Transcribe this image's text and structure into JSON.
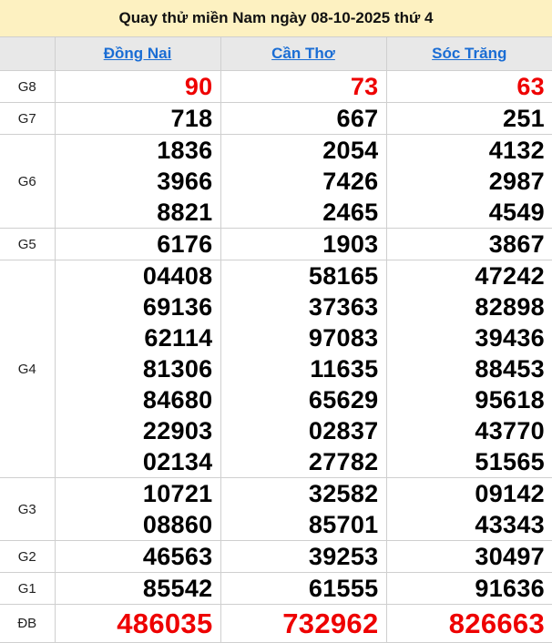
{
  "title": "Quay thử miền Nam ngày 08-10-2025 thứ 4",
  "provinces": [
    "Đồng Nai",
    "Cần Thơ",
    "Sóc Trăng"
  ],
  "colors": {
    "special": "#e00000",
    "link": "#1a6dd4",
    "title_bg": "#fdf1c1"
  },
  "prizes": [
    {
      "label": "G8",
      "values": [
        [
          "90"
        ],
        [
          "73"
        ],
        [
          "63"
        ]
      ],
      "red": true
    },
    {
      "label": "G7",
      "values": [
        [
          "718"
        ],
        [
          "667"
        ],
        [
          "251"
        ]
      ]
    },
    {
      "label": "G6",
      "values": [
        [
          "1836",
          "3966",
          "8821"
        ],
        [
          "2054",
          "7426",
          "2465"
        ],
        [
          "4132",
          "2987",
          "4549"
        ]
      ]
    },
    {
      "label": "G5",
      "values": [
        [
          "6176"
        ],
        [
          "1903"
        ],
        [
          "3867"
        ]
      ]
    },
    {
      "label": "G4",
      "values": [
        [
          "04408",
          "69136",
          "62114",
          "81306",
          "84680",
          "22903",
          "02134"
        ],
        [
          "58165",
          "37363",
          "97083",
          "11635",
          "65629",
          "02837",
          "27782"
        ],
        [
          "47242",
          "82898",
          "39436",
          "88453",
          "95618",
          "43770",
          "51565"
        ]
      ]
    },
    {
      "label": "G3",
      "values": [
        [
          "10721",
          "08860"
        ],
        [
          "32582",
          "85701"
        ],
        [
          "09142",
          "43343"
        ]
      ]
    },
    {
      "label": "G2",
      "values": [
        [
          "46563"
        ],
        [
          "39253"
        ],
        [
          "30497"
        ]
      ]
    },
    {
      "label": "G1",
      "values": [
        [
          "85542"
        ],
        [
          "61555"
        ],
        [
          "91636"
        ]
      ]
    },
    {
      "label": "ĐB",
      "values": [
        [
          "486035"
        ],
        [
          "732962"
        ],
        [
          "826663"
        ]
      ],
      "red": true
    }
  ]
}
